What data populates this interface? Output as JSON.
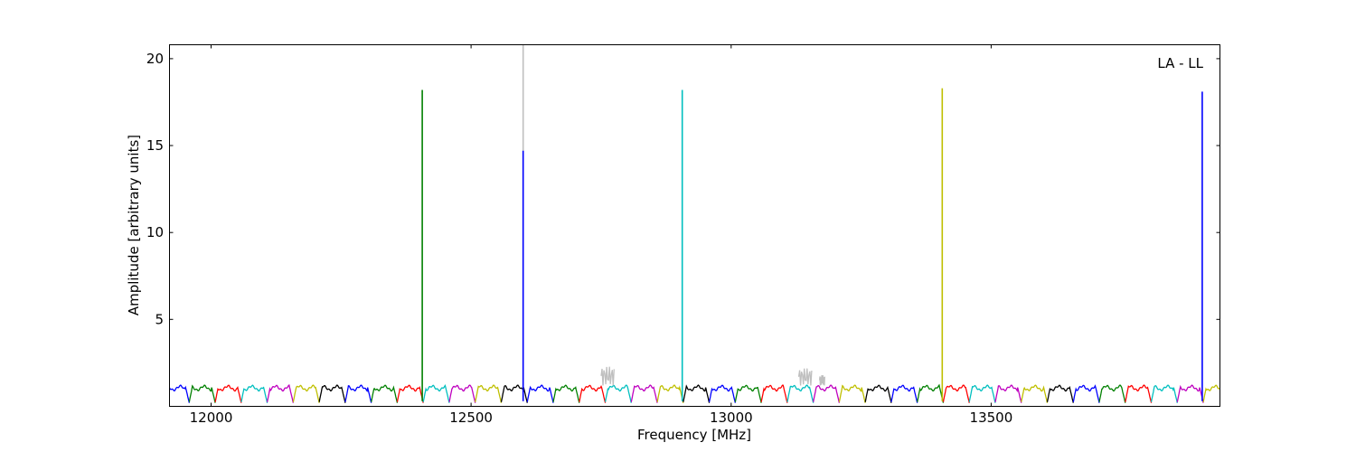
{
  "chart_data": {
    "type": "line",
    "annotation": "LA - LL",
    "xlabel": "Frequency [MHz]",
    "ylabel": "Amplitude [arbitrary units]",
    "xlim": [
      11920,
      13940
    ],
    "ylim": [
      0,
      20.8
    ],
    "xticks": [
      12000,
      12500,
      13000,
      13500
    ],
    "yticks": [
      5,
      10,
      15,
      20
    ],
    "grid": false,
    "legend": "none",
    "band_width_mhz": 50,
    "band_colors": [
      "#0000ff",
      "#008000",
      "#ff0000",
      "#00bfbf",
      "#bf00bf",
      "#bfbf00",
      "#000000"
    ],
    "flagged_color": "#bfbfbf",
    "spikes": [
      {
        "x": 12406,
        "y": 18.2,
        "color": "#008000"
      },
      {
        "x": 12600,
        "y": 20.8,
        "color": "#bfbfbf"
      },
      {
        "x": 12600,
        "y": 14.7,
        "color": "#0000ff"
      },
      {
        "x": 12906,
        "y": 18.2,
        "color": "#00bfbf"
      },
      {
        "x": 13406,
        "y": 18.3,
        "color": "#bfbf00"
      },
      {
        "x": 13906,
        "y": 18.1,
        "color": "#0000ff"
      }
    ],
    "noisy_regions": [
      {
        "x0": 12750,
        "x1": 12775,
        "y": 2.3,
        "color": "#bfbfbf"
      },
      {
        "x0": 13130,
        "x1": 13155,
        "y": 2.2,
        "color": "#bfbfbf"
      },
      {
        "x0": 13170,
        "x1": 13180,
        "y": 1.8,
        "color": "#bfbfbf"
      }
    ]
  }
}
